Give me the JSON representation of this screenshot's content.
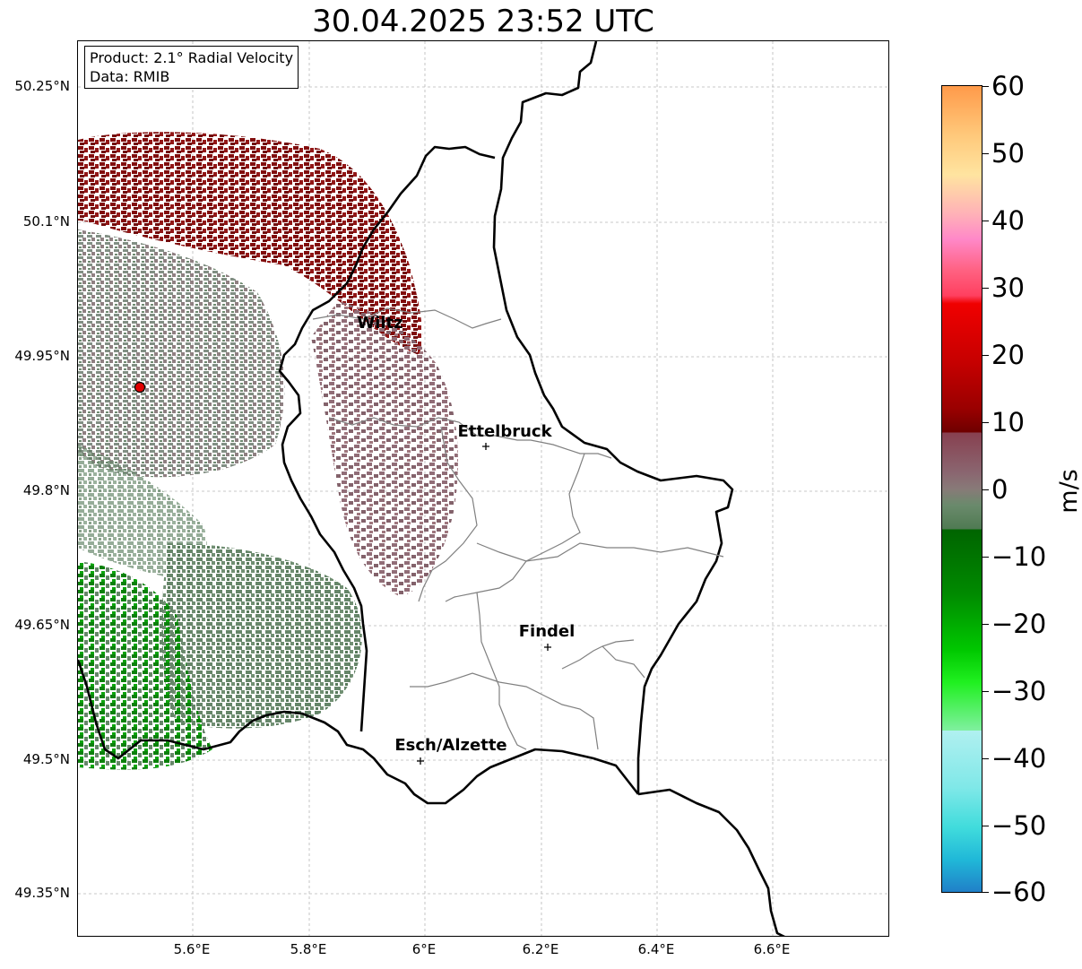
{
  "title": "30.04.2025 23:52 UTC",
  "info": {
    "product": "Product: 2.1° Radial Velocity",
    "data_source": "Data: RMIB"
  },
  "lat_labels": [
    "50.25°N",
    "50.1°N",
    "49.95°N",
    "49.8°N",
    "49.65°N",
    "49.5°N",
    "49.35°N"
  ],
  "lon_labels": [
    "5.6°E",
    "5.8°E",
    "6°E",
    "6.2°E",
    "6.4°E",
    "6.6°E"
  ],
  "cities": {
    "wiltz": "Wiltz",
    "ettelbruck": "Ettelbruck",
    "findel": "Findel",
    "esch": "Esch/Alzette"
  },
  "colorbar": {
    "unit": "m/s",
    "min": -60,
    "max": 60,
    "tick_labels": [
      "60",
      "50",
      "40",
      "30",
      "20",
      "10",
      "0",
      "−10",
      "−20",
      "−30",
      "−40",
      "−50",
      "−60"
    ]
  },
  "colors": {
    "strong_away": "#7a0000",
    "away_mid": "#cc0000",
    "near_zero_away": "#8c6670",
    "near_zero_toward": "#5e8062",
    "toward_mid": "#007a00",
    "toward_strong": "#00cc00",
    "border": "#000000",
    "canton": "#808080",
    "radar_site": "#e00000"
  }
}
